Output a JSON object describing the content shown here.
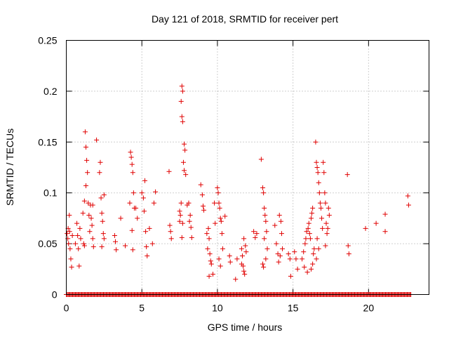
{
  "chart_data": {
    "type": "scatter",
    "title": "Day 121 of 2018, SRMTID for receiver pert",
    "xlabel": "GPS time / hours",
    "ylabel": "SRMTID / TECUs",
    "xlim": [
      0,
      24
    ],
    "ylim": [
      0,
      0.25
    ],
    "xticks": [
      0,
      5,
      10,
      15,
      20
    ],
    "xtick_labels": [
      "0",
      "5",
      "10",
      "15",
      "20"
    ],
    "yticks": [
      0,
      0.05,
      0.1,
      0.15,
      0.2,
      0.25
    ],
    "ytick_labels": [
      "0",
      "0.05",
      "0.1",
      "0.15",
      "0.2",
      "0.25"
    ],
    "grid": true,
    "marker": "+",
    "series": [
      {
        "name": "SRMTID",
        "color": "#e00000",
        "zero_baseline_x_range": [
          0,
          22.8
        ],
        "points": [
          [
            0.05,
            0.06
          ],
          [
            0.1,
            0.055
          ],
          [
            0.15,
            0.05
          ],
          [
            0.2,
            0.078
          ],
          [
            0.25,
            0.045
          ],
          [
            0.3,
            0.035
          ],
          [
            0.35,
            0.027
          ],
          [
            0.4,
            0.058
          ],
          [
            0.12,
            0.065
          ],
          [
            0.22,
            0.062
          ],
          [
            0.6,
            0.05
          ],
          [
            0.7,
            0.07
          ],
          [
            0.75,
            0.058
          ],
          [
            0.8,
            0.045
          ],
          [
            0.85,
            0.028
          ],
          [
            0.9,
            0.065
          ],
          [
            0.95,
            0.055
          ],
          [
            1.1,
            0.08
          ],
          [
            1.15,
            0.05
          ],
          [
            1.2,
            0.092
          ],
          [
            1.25,
            0.16
          ],
          [
            1.3,
            0.145
          ],
          [
            1.35,
            0.132
          ],
          [
            1.4,
            0.12
          ],
          [
            1.3,
            0.107
          ],
          [
            1.45,
            0.09
          ],
          [
            1.5,
            0.078
          ],
          [
            1.55,
            0.062
          ],
          [
            1.2,
            0.048
          ],
          [
            1.6,
            0.088
          ],
          [
            1.65,
            0.075
          ],
          [
            1.7,
            0.068
          ],
          [
            1.75,
            0.055
          ],
          [
            1.8,
            0.047
          ],
          [
            1.75,
            0.088
          ],
          [
            2.0,
            0.152
          ],
          [
            2.2,
            0.12
          ],
          [
            2.25,
            0.13
          ],
          [
            2.3,
            0.095
          ],
          [
            2.35,
            0.08
          ],
          [
            2.4,
            0.072
          ],
          [
            2.45,
            0.06
          ],
          [
            2.5,
            0.055
          ],
          [
            2.35,
            0.047
          ],
          [
            2.5,
            0.098
          ],
          [
            3.2,
            0.058
          ],
          [
            3.25,
            0.052
          ],
          [
            3.3,
            0.044
          ],
          [
            3.6,
            0.075
          ],
          [
            3.9,
            0.048
          ],
          [
            4.2,
            0.09
          ],
          [
            4.25,
            0.14
          ],
          [
            4.3,
            0.135
          ],
          [
            4.35,
            0.128
          ],
          [
            4.4,
            0.12
          ],
          [
            4.45,
            0.1
          ],
          [
            4.5,
            0.085
          ],
          [
            4.35,
            0.063
          ],
          [
            4.4,
            0.044
          ],
          [
            4.6,
            0.085
          ],
          [
            4.7,
            0.075
          ],
          [
            5.0,
            0.1
          ],
          [
            5.1,
            0.095
          ],
          [
            5.15,
            0.082
          ],
          [
            5.2,
            0.112
          ],
          [
            5.25,
            0.062
          ],
          [
            5.3,
            0.047
          ],
          [
            5.35,
            0.038
          ],
          [
            5.5,
            0.065
          ],
          [
            5.7,
            0.05
          ],
          [
            5.8,
            0.09
          ],
          [
            5.9,
            0.101
          ],
          [
            6.8,
            0.121
          ],
          [
            6.85,
            0.068
          ],
          [
            6.9,
            0.062
          ],
          [
            6.95,
            0.055
          ],
          [
            7.5,
            0.082
          ],
          [
            7.55,
            0.078
          ],
          [
            7.6,
            0.09
          ],
          [
            7.65,
            0.205
          ],
          [
            7.7,
            0.2
          ],
          [
            7.6,
            0.19
          ],
          [
            7.65,
            0.175
          ],
          [
            7.7,
            0.17
          ],
          [
            7.8,
            0.148
          ],
          [
            7.85,
            0.142
          ],
          [
            7.75,
            0.13
          ],
          [
            7.8,
            0.122
          ],
          [
            7.9,
            0.118
          ],
          [
            7.7,
            0.07
          ],
          [
            7.65,
            0.056
          ],
          [
            7.5,
            0.072
          ],
          [
            8.1,
            0.09
          ],
          [
            8.15,
            0.072
          ],
          [
            8.2,
            0.078
          ],
          [
            8.25,
            0.066
          ],
          [
            8.3,
            0.056
          ],
          [
            8.0,
            0.088
          ],
          [
            8.9,
            0.108
          ],
          [
            9.0,
            0.098
          ],
          [
            9.05,
            0.087
          ],
          [
            9.1,
            0.083
          ],
          [
            9.3,
            0.06
          ],
          [
            9.35,
            0.045
          ],
          [
            9.4,
            0.065
          ],
          [
            9.45,
            0.055
          ],
          [
            9.5,
            0.04
          ],
          [
            9.55,
            0.033
          ],
          [
            9.6,
            0.03
          ],
          [
            9.45,
            0.018
          ],
          [
            9.7,
            0.02
          ],
          [
            9.8,
            0.09
          ],
          [
            9.85,
            0.07
          ],
          [
            10.0,
            0.105
          ],
          [
            10.05,
            0.1
          ],
          [
            10.1,
            0.09
          ],
          [
            10.15,
            0.085
          ],
          [
            10.2,
            0.075
          ],
          [
            10.25,
            0.072
          ],
          [
            10.3,
            0.06
          ],
          [
            10.35,
            0.045
          ],
          [
            10.1,
            0.035
          ],
          [
            10.2,
            0.028
          ],
          [
            10.5,
            0.077
          ],
          [
            10.8,
            0.038
          ],
          [
            10.85,
            0.032
          ],
          [
            11.2,
            0.015
          ],
          [
            11.3,
            0.035
          ],
          [
            11.6,
            0.045
          ],
          [
            11.65,
            0.038
          ],
          [
            11.7,
            0.028
          ],
          [
            11.75,
            0.023
          ],
          [
            11.8,
            0.02
          ],
          [
            11.85,
            0.048
          ],
          [
            11.9,
            0.042
          ],
          [
            11.75,
            0.055
          ],
          [
            11.6,
            0.03
          ],
          [
            12.4,
            0.062
          ],
          [
            12.5,
            0.056
          ],
          [
            12.6,
            0.06
          ],
          [
            12.9,
            0.133
          ],
          [
            13.0,
            0.105
          ],
          [
            13.05,
            0.1
          ],
          [
            13.1,
            0.085
          ],
          [
            13.15,
            0.078
          ],
          [
            13.2,
            0.072
          ],
          [
            13.25,
            0.062
          ],
          [
            13.1,
            0.055
          ],
          [
            13.3,
            0.045
          ],
          [
            13.2,
            0.035
          ],
          [
            13.0,
            0.03
          ],
          [
            13.05,
            0.027
          ],
          [
            13.8,
            0.068
          ],
          [
            13.9,
            0.05
          ],
          [
            14.0,
            0.04
          ],
          [
            14.05,
            0.032
          ],
          [
            14.1,
            0.078
          ],
          [
            14.2,
            0.072
          ],
          [
            14.25,
            0.06
          ],
          [
            14.3,
            0.045
          ],
          [
            14.15,
            0.038
          ],
          [
            14.7,
            0.04
          ],
          [
            14.8,
            0.035
          ],
          [
            14.85,
            0.018
          ],
          [
            15.1,
            0.042
          ],
          [
            15.2,
            0.035
          ],
          [
            15.3,
            0.025
          ],
          [
            15.6,
            0.035
          ],
          [
            15.7,
            0.042
          ],
          [
            15.8,
            0.05
          ],
          [
            15.85,
            0.055
          ],
          [
            15.9,
            0.062
          ],
          [
            15.75,
            0.027
          ],
          [
            15.95,
            0.022
          ],
          [
            16.0,
            0.065
          ],
          [
            16.05,
            0.07
          ],
          [
            16.1,
            0.06
          ],
          [
            16.15,
            0.055
          ],
          [
            16.2,
            0.075
          ],
          [
            16.25,
            0.08
          ],
          [
            16.3,
            0.085
          ],
          [
            16.35,
            0.04
          ],
          [
            16.4,
            0.045
          ],
          [
            16.3,
            0.03
          ],
          [
            16.2,
            0.025
          ],
          [
            16.5,
            0.15
          ],
          [
            16.55,
            0.13
          ],
          [
            16.6,
            0.125
          ],
          [
            16.65,
            0.12
          ],
          [
            16.7,
            0.11
          ],
          [
            16.75,
            0.1
          ],
          [
            16.8,
            0.09
          ],
          [
            16.85,
            0.085
          ],
          [
            16.9,
            0.075
          ],
          [
            16.95,
            0.065
          ],
          [
            16.6,
            0.055
          ],
          [
            16.7,
            0.045
          ],
          [
            16.55,
            0.035
          ],
          [
            17.0,
            0.13
          ],
          [
            17.05,
            0.12
          ],
          [
            17.1,
            0.1
          ],
          [
            17.15,
            0.09
          ],
          [
            17.2,
            0.07
          ],
          [
            17.3,
            0.065
          ],
          [
            17.35,
            0.085
          ],
          [
            17.4,
            0.078
          ],
          [
            17.25,
            0.06
          ],
          [
            17.15,
            0.048
          ],
          [
            18.6,
            0.118
          ],
          [
            18.65,
            0.048
          ],
          [
            18.7,
            0.04
          ],
          [
            19.8,
            0.065
          ],
          [
            20.5,
            0.07
          ],
          [
            21.1,
            0.079
          ],
          [
            21.1,
            0.062
          ],
          [
            22.6,
            0.097
          ],
          [
            22.65,
            0.088
          ]
        ]
      }
    ]
  }
}
